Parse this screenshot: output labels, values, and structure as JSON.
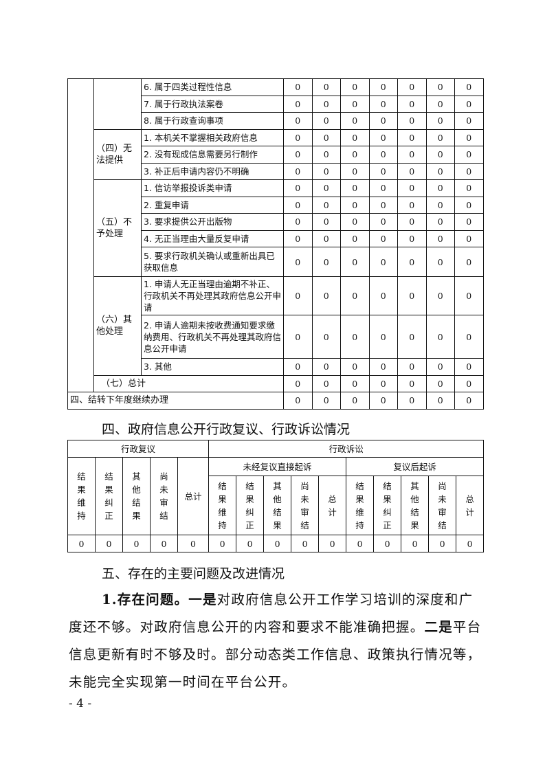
{
  "table1": {
    "groups": [
      {
        "label": "",
        "rows": [
          {
            "item": "6. 属于四类过程性信息",
            "values": [
              0,
              0,
              0,
              0,
              0,
              0,
              0
            ]
          },
          {
            "item": "7. 属于行政执法案卷",
            "values": [
              0,
              0,
              0,
              0,
              0,
              0,
              0
            ]
          },
          {
            "item": "8. 属于行政查询事项",
            "values": [
              0,
              0,
              0,
              0,
              0,
              0,
              0
            ]
          }
        ]
      },
      {
        "label": "（四）无法提供",
        "rows": [
          {
            "item": "1. 本机关不掌握相关政府信息",
            "values": [
              0,
              0,
              0,
              0,
              0,
              0,
              0
            ]
          },
          {
            "item": "2. 没有现成信息需要另行制作",
            "values": [
              0,
              0,
              0,
              0,
              0,
              0,
              0
            ]
          },
          {
            "item": "3. 补正后申请内容仍不明确",
            "values": [
              0,
              0,
              0,
              0,
              0,
              0,
              0
            ]
          }
        ]
      },
      {
        "label": "（五）不予处理",
        "rows": [
          {
            "item": "1. 信访举报投诉类申请",
            "values": [
              0,
              0,
              0,
              0,
              0,
              0,
              0
            ]
          },
          {
            "item": "2. 重复申请",
            "values": [
              0,
              0,
              0,
              0,
              0,
              0,
              0
            ]
          },
          {
            "item": "3. 要求提供公开出版物",
            "values": [
              0,
              0,
              0,
              0,
              0,
              0,
              0
            ]
          },
          {
            "item": "4. 无正当理由大量反复申请",
            "values": [
              0,
              0,
              0,
              0,
              0,
              0,
              0
            ]
          },
          {
            "item": "5. 要求行政机关确认或重新出具已获取信息",
            "values": [
              0,
              0,
              0,
              0,
              0,
              0,
              0
            ]
          }
        ]
      },
      {
        "label": "（六）其他处理",
        "rows": [
          {
            "item": "1. 申请人无正当理由逾期不补正、行政机关不再处理其政府信息公开申请",
            "values": [
              0,
              0,
              0,
              0,
              0,
              0,
              0
            ]
          },
          {
            "item": "2. 申请人逾期未按收费通知要求缴纳费用、行政机关不再处理其政府信息公开申请",
            "values": [
              0,
              0,
              0,
              0,
              0,
              0,
              0
            ]
          },
          {
            "item": "3. 其他",
            "values": [
              0,
              0,
              0,
              0,
              0,
              0,
              0
            ]
          }
        ]
      }
    ],
    "total": {
      "label": "（七）总计",
      "values": [
        0,
        0,
        0,
        0,
        0,
        0,
        0
      ]
    },
    "carryover": {
      "label": "四、结转下年度继续办理",
      "values": [
        0,
        0,
        0,
        0,
        0,
        0,
        0
      ]
    }
  },
  "section4_title": "四、政府信息公开行政复议、行政诉讼情况",
  "table2": {
    "review": "行政复议",
    "litigation": "行政诉讼",
    "direct": "未经复议直接起诉",
    "after_review": "复议后起诉",
    "review_cols": [
      "结果维持",
      "结果纠正",
      "其他结果",
      "尚未审结",
      "总计"
    ],
    "lit_cols": [
      "结果维持",
      "结果纠正",
      "其他结果",
      "尚未审结",
      "总计"
    ],
    "values": [
      0,
      0,
      0,
      0,
      0,
      0,
      0,
      0,
      0,
      0,
      0,
      0,
      0,
      0,
      0
    ]
  },
  "section5_title": "五、存在的主要问题及改进情况",
  "paragraph": {
    "lead": "1.存在问题。",
    "part1_bold": "一是",
    "part1": "对政府信息公开工作学习培训的深度和广度还不够。对政府信息公开的内容和要求不能准确把握。",
    "part2_bold": "二是",
    "part2": "平台信息更新有时不够及时。部分动态类工作信息、政策执行情况等，未能完全实现第一时间在平台公开。"
  },
  "page_number": "- 4 -"
}
